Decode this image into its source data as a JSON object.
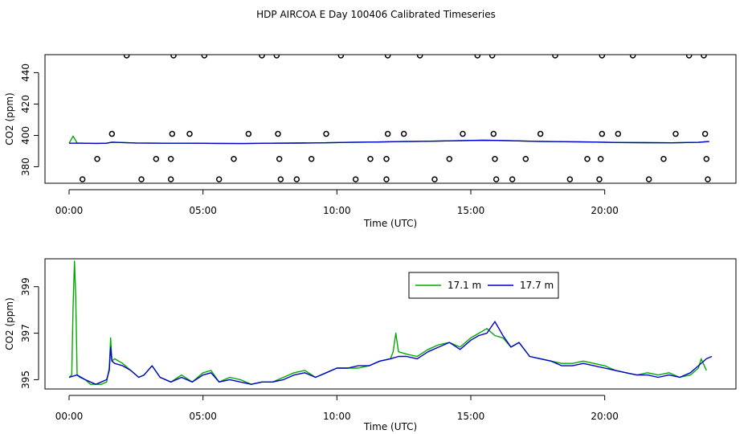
{
  "title": "HDP AIRCOA E  Day 100406  Calibrated Timeseries",
  "chart_data": [
    {
      "type": "scatter",
      "xlabel": "Time (UTC)",
      "ylabel": "CO2 (ppm)",
      "xlim": [
        -0.9,
        24.9
      ],
      "ylim": [
        369.5,
        451.5
      ],
      "x_ticks": [
        0,
        5,
        10,
        15,
        20
      ],
      "x_tick_labels": [
        "00:00",
        "05:00",
        "10:00",
        "15:00",
        "20:00"
      ],
      "y_ticks": [
        380,
        400,
        420,
        440
      ],
      "y_tick_labels": [
        "380",
        "400",
        "420",
        "440"
      ],
      "points": [
        [
          2.15,
          451
        ],
        [
          3.9,
          451
        ],
        [
          5.05,
          451
        ],
        [
          7.2,
          451
        ],
        [
          7.75,
          451
        ],
        [
          10.15,
          451
        ],
        [
          11.9,
          451
        ],
        [
          13.1,
          451
        ],
        [
          15.25,
          451
        ],
        [
          15.8,
          451
        ],
        [
          18.15,
          451
        ],
        [
          19.9,
          451
        ],
        [
          21.05,
          451
        ],
        [
          23.15,
          451
        ],
        [
          23.7,
          451
        ],
        [
          1.6,
          401
        ],
        [
          3.85,
          401
        ],
        [
          4.5,
          401
        ],
        [
          6.7,
          401
        ],
        [
          7.8,
          401
        ],
        [
          9.6,
          401
        ],
        [
          11.9,
          401
        ],
        [
          12.5,
          401
        ],
        [
          14.7,
          401
        ],
        [
          15.85,
          401
        ],
        [
          17.6,
          401
        ],
        [
          19.9,
          401
        ],
        [
          20.5,
          401
        ],
        [
          22.65,
          401
        ],
        [
          23.75,
          401
        ],
        [
          1.05,
          385
        ],
        [
          3.25,
          385
        ],
        [
          3.8,
          385
        ],
        [
          6.15,
          385
        ],
        [
          7.85,
          385
        ],
        [
          9.05,
          385
        ],
        [
          11.25,
          385
        ],
        [
          11.85,
          385
        ],
        [
          14.2,
          385
        ],
        [
          15.9,
          385
        ],
        [
          17.05,
          385
        ],
        [
          19.35,
          385
        ],
        [
          19.85,
          385
        ],
        [
          22.2,
          385
        ],
        [
          23.8,
          385
        ],
        [
          0.5,
          372
        ],
        [
          2.7,
          372
        ],
        [
          3.8,
          372
        ],
        [
          5.6,
          372
        ],
        [
          7.9,
          372
        ],
        [
          8.5,
          372
        ],
        [
          10.7,
          372
        ],
        [
          11.85,
          372
        ],
        [
          13.65,
          372
        ],
        [
          15.95,
          372
        ],
        [
          16.55,
          372
        ],
        [
          18.7,
          372
        ],
        [
          19.8,
          372
        ],
        [
          21.65,
          372
        ],
        [
          23.85,
          372
        ]
      ],
      "series": [
        {
          "name": "17.1 m",
          "color": "#00aa00",
          "x": [
            0,
            0.15,
            0.3,
            0.6,
            1.0,
            1.4,
            1.6,
            2.5,
            3.5,
            4.5,
            5.5,
            6.5,
            7.5,
            8.5,
            9.5,
            10.5,
            11.5,
            12.5,
            13.5,
            14.5,
            15.5,
            16.5,
            17.5,
            18.5,
            19.5,
            20.5,
            21.5,
            22.5,
            23.5,
            23.9
          ],
          "y": [
            395.0,
            399.6,
            395.2,
            395.0,
            394.9,
            395.0,
            395.7,
            395.2,
            395.0,
            395.0,
            394.9,
            394.8,
            395.0,
            395.1,
            395.3,
            395.6,
            395.8,
            396.1,
            396.3,
            396.6,
            396.9,
            396.6,
            396.2,
            396.0,
            395.8,
            395.5,
            395.4,
            395.3,
            395.6,
            396.1
          ]
        },
        {
          "name": "17.7 m",
          "color": "#0000cc",
          "x": [
            0,
            0.5,
            1.0,
            1.4,
            1.6,
            2.5,
            3.5,
            4.5,
            5.5,
            6.5,
            7.5,
            8.5,
            9.5,
            10.5,
            11.5,
            12.5,
            13.5,
            14.5,
            15.5,
            16.5,
            17.5,
            18.5,
            19.5,
            20.5,
            21.5,
            22.5,
            23.5,
            23.9
          ],
          "y": [
            395.0,
            395.0,
            394.9,
            395.0,
            395.7,
            395.2,
            395.0,
            395.0,
            394.9,
            394.8,
            395.0,
            395.1,
            395.3,
            395.6,
            395.8,
            396.1,
            396.3,
            396.6,
            396.9,
            396.6,
            396.2,
            396.0,
            395.8,
            395.5,
            395.4,
            395.3,
            395.6,
            396.1
          ]
        }
      ]
    },
    {
      "type": "line",
      "xlabel": "Time (UTC)",
      "ylabel": "CO2 (ppm)",
      "xlim": [
        -0.9,
        24.9
      ],
      "ylim": [
        394.6,
        400.2
      ],
      "x_ticks": [
        0,
        5,
        10,
        15,
        20
      ],
      "x_tick_labels": [
        "00:00",
        "05:00",
        "10:00",
        "15:00",
        "20:00"
      ],
      "y_ticks": [
        395,
        397,
        399
      ],
      "y_tick_labels": [
        "395",
        "397",
        "399"
      ],
      "legend": "top-right",
      "series": [
        {
          "name": "17.1 m",
          "color": "#00aa00",
          "x": [
            0,
            0.1,
            0.15,
            0.2,
            0.25,
            0.3,
            0.4,
            0.6,
            0.8,
            1.0,
            1.2,
            1.4,
            1.5,
            1.55,
            1.6,
            1.7,
            2.0,
            2.3,
            2.6,
            2.8,
            3.1,
            3.4,
            3.8,
            4.2,
            4.6,
            5.0,
            5.3,
            5.6,
            6.0,
            6.4,
            6.8,
            7.2,
            7.6,
            8.0,
            8.4,
            8.8,
            9.2,
            9.6,
            10.0,
            10.4,
            10.8,
            11.2,
            11.6,
            12.0,
            12.1,
            12.2,
            12.3,
            12.6,
            13.0,
            13.4,
            13.8,
            14.2,
            14.6,
            15.0,
            15.3,
            15.6,
            15.9,
            16.2,
            16.5,
            16.8,
            17.2,
            17.6,
            18.0,
            18.4,
            18.8,
            19.2,
            19.6,
            20.0,
            20.4,
            20.8,
            21.2,
            21.6,
            22.0,
            22.4,
            22.8,
            23.2,
            23.5,
            23.6,
            23.8
          ],
          "y": [
            395.1,
            395.2,
            398.2,
            400.1,
            398.5,
            395.2,
            395.1,
            395.0,
            394.8,
            394.8,
            394.8,
            394.9,
            395.5,
            396.8,
            395.8,
            395.9,
            395.7,
            395.4,
            395.1,
            395.2,
            395.6,
            395.1,
            394.9,
            395.2,
            394.9,
            395.3,
            395.4,
            394.9,
            395.1,
            395.0,
            394.8,
            394.9,
            394.9,
            395.1,
            395.3,
            395.4,
            395.1,
            395.3,
            395.5,
            395.5,
            395.5,
            395.6,
            395.8,
            395.9,
            396.2,
            397.0,
            396.2,
            396.1,
            396.0,
            396.3,
            396.5,
            396.6,
            396.4,
            396.8,
            397.0,
            397.2,
            396.9,
            396.8,
            396.4,
            396.6,
            396.0,
            395.9,
            395.8,
            395.7,
            395.7,
            395.8,
            395.7,
            395.6,
            395.4,
            395.3,
            395.2,
            395.3,
            395.2,
            395.3,
            395.1,
            395.2,
            395.5,
            395.9,
            395.4
          ]
        },
        {
          "name": "17.7 m",
          "color": "#0000cc",
          "x": [
            0,
            0.3,
            0.6,
            0.8,
            1.0,
            1.2,
            1.4,
            1.5,
            1.55,
            1.6,
            1.7,
            2.0,
            2.3,
            2.6,
            2.8,
            3.1,
            3.4,
            3.8,
            4.2,
            4.6,
            5.0,
            5.3,
            5.6,
            6.0,
            6.4,
            6.8,
            7.2,
            7.6,
            8.0,
            8.4,
            8.8,
            9.2,
            9.6,
            10.0,
            10.4,
            10.8,
            11.2,
            11.6,
            12.0,
            12.3,
            12.6,
            13.0,
            13.4,
            13.8,
            14.2,
            14.6,
            15.0,
            15.3,
            15.6,
            15.9,
            16.2,
            16.5,
            16.8,
            17.2,
            17.6,
            18.0,
            18.4,
            18.8,
            19.2,
            19.6,
            20.0,
            20.4,
            20.8,
            21.2,
            21.6,
            22.0,
            22.4,
            22.8,
            23.2,
            23.5,
            23.8,
            24.0
          ],
          "y": [
            395.1,
            395.2,
            395.0,
            394.9,
            394.8,
            394.9,
            395.0,
            395.4,
            396.4,
            395.8,
            395.7,
            395.6,
            395.4,
            395.1,
            395.2,
            395.6,
            395.1,
            394.9,
            395.1,
            394.9,
            395.2,
            395.3,
            394.9,
            395.0,
            394.9,
            394.8,
            394.9,
            394.9,
            395.0,
            395.2,
            395.3,
            395.1,
            395.3,
            395.5,
            395.5,
            395.6,
            395.6,
            395.8,
            395.9,
            396.0,
            396.0,
            395.9,
            396.2,
            396.4,
            396.6,
            396.3,
            396.7,
            396.9,
            397.0,
            397.5,
            396.9,
            396.4,
            396.6,
            396.0,
            395.9,
            395.8,
            395.6,
            395.6,
            395.7,
            395.6,
            395.5,
            395.4,
            395.3,
            395.2,
            395.2,
            395.1,
            395.2,
            395.1,
            395.3,
            395.6,
            395.9,
            396.0
          ]
        }
      ]
    }
  ]
}
